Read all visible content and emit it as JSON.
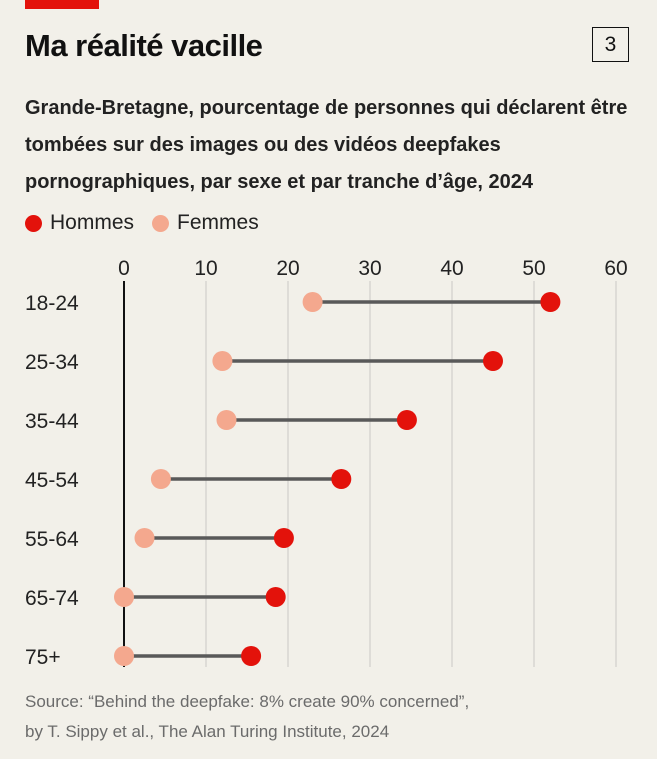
{
  "header": {
    "title": "Ma réalité vacille",
    "badge": "3",
    "subtitle": "Grande-Bretagne, pourcentage de personnes qui déclarent être tombées sur des images ou des vidéos deepfakes pornographiques, par sexe et par tranche d’âge, 2024"
  },
  "colors": {
    "men": "#e3120b",
    "women": "#f4a88e",
    "connector": "#595959",
    "grid": "#c9c9c5"
  },
  "chart_data": {
    "type": "dumbbell",
    "title": "Ma réalité vacille",
    "xlabel": "",
    "ylabel": "",
    "xlim": [
      0,
      60
    ],
    "xticks": [
      "0",
      "10",
      "20",
      "30",
      "40",
      "50",
      "60"
    ],
    "categories": [
      "18-24",
      "25-34",
      "35-44",
      "45-54",
      "55-64",
      "65-74",
      "75+"
    ],
    "series": [
      {
        "name": "Hommes",
        "values": [
          52,
          45,
          34.5,
          26.5,
          19.5,
          18.5,
          15.5
        ]
      },
      {
        "name": "Femmes",
        "values": [
          23,
          12,
          12.5,
          4.5,
          2.5,
          0,
          0
        ]
      }
    ],
    "legend": [
      "Hommes",
      "Femmes"
    ]
  },
  "source": {
    "line1": "Source: “Behind the deepfake: 8% create 90% concerned”,",
    "line2": "by T. Sippy et al., The Alan Turing Institute, 2024"
  }
}
